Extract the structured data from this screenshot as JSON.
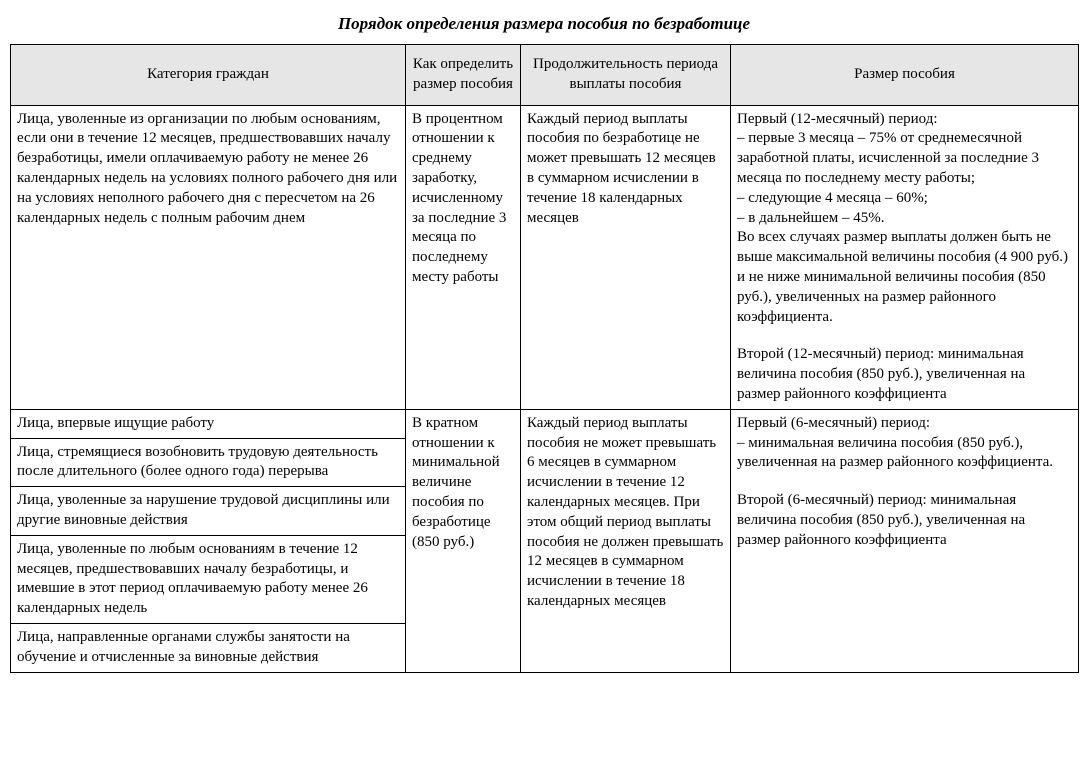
{
  "title": "Порядок определения размера пособия по безработице",
  "columns": [
    "Категория граждан",
    "Как определить размер пособия",
    "Продолжительность периода выплаты пособия",
    "Размер пособия"
  ],
  "row1": {
    "cat": "Лица, уволенные из организации по любым основаниям, если они в течение 12 месяцев, предшествовавших началу безработицы, имели оплачиваемую работу не менее 26 календарных недель на условиях полного рабочего дня или на условиях неполного рабочего дня с пересчетом на 26 календарных недель с полным рабочим днем",
    "how": "В процентном отношении к среднему заработку, исчисленному за последние 3 месяца по последнему месту работы",
    "dur": "Каждый период выплаты пособия по безработице не может превышать 12 месяцев в суммарном исчислении в течение 18 календарных месяцев",
    "sz1": "Первый (12-месячный) период:",
    "sz2": "–  первые 3 месяца – 75% от среднемесячной заработной платы, исчисленной за последние 3 месяца по последнему месту работы;",
    "sz3": "–  следующие 4 месяца – 60%;",
    "sz4": "–  в дальнейшем – 45%.",
    "sz5": "Во всех случаях размер выплаты должен быть не выше максимальной величины пособия (4 900 руб.) и не ниже минимальной величины пособия (850 руб.), увеличенных на размер районного коэффициента.",
    "sz6": "Второй (12-месячный) период: минимальная величина пособия (850 руб.), увеличенная на размер районного коэффициента"
  },
  "group2": {
    "cat1": "Лица, впервые ищущие работу",
    "cat2": "Лица, стремящиеся возобновить трудовую деятельность после длительного (более одного года) перерыва",
    "cat3": "Лица, уволенные за нарушение трудовой дисциплины или другие виновные действия",
    "cat4": "Лица, уволенные по любым основаниям в течение 12 месяцев, предшествовавших началу безработицы, и имевшие в этот период оплачиваемую работу менее 26 календарных недель",
    "cat5": "Лица, направленные органами службы занятости на обучение и отчисленные за виновные действия",
    "how": "В кратном отношении к минимальной величине пособия по безработице (850 руб.)",
    "dur": "Каждый период выплаты пособия не может превышать 6 месяцев в суммарном исчислении в течение 12 календарных месяцев. При этом общий период выплаты пособия не должен превышать 12 месяцев в суммарном исчислении в течение 18 календарных месяцев",
    "sz1": "Первый (6-месячный) период:",
    "sz2": "– минимальная величина пособия (850 руб.), увеличенная на размер районного коэффициента.",
    "sz3": "Второй (6-месячный) период: минимальная величина пособия (850 руб.), увеличенная на размер районного коэффициента"
  }
}
